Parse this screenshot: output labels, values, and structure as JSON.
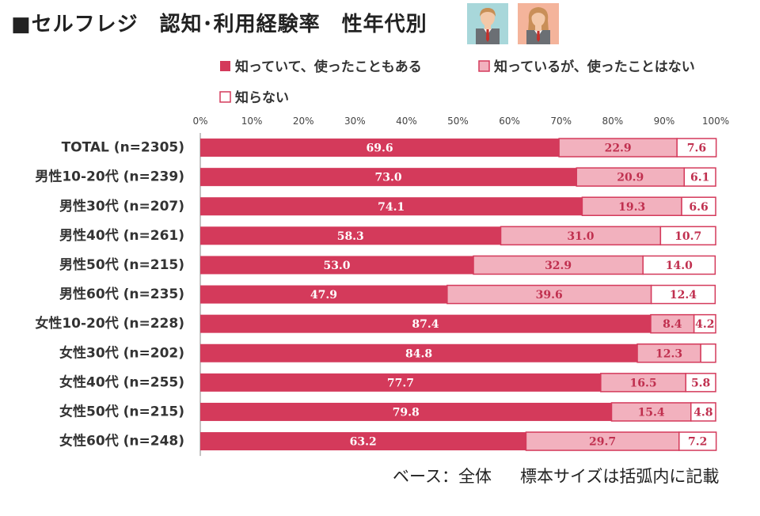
{
  "title": "■セルフレジ　認知･利用経験率　性年代別",
  "icons": [
    "man-avatar-icon",
    "woman-avatar-icon"
  ],
  "footnote": {
    "base": "ベース：全体",
    "sample": "標本サイズは括弧内に記載"
  },
  "colors": {
    "used": "#d43a5b",
    "known_not_used": "#f2b1be",
    "unknown": "#ffffff",
    "used_label": "#ffffff",
    "other_label": "#c0304f"
  },
  "chart_data": {
    "type": "bar",
    "orientation": "horizontal",
    "stacked": true,
    "categories": [
      "TOTAL (n=2305)",
      "男性10-20代 (n=239)",
      "男性30代 (n=207)",
      "男性40代 (n=261)",
      "男性50代 (n=215)",
      "男性60代 (n=235)",
      "女性10-20代 (n=228)",
      "女性30代 (n=202)",
      "女性40代 (n=255)",
      "女性50代 (n=215)",
      "女性60代 (n=248)"
    ],
    "series": [
      {
        "name": "知っていて、使ったこともある",
        "values": [
          69.6,
          73.0,
          74.1,
          58.3,
          53.0,
          47.9,
          87.4,
          84.8,
          77.7,
          79.8,
          63.2
        ],
        "labels": [
          "69.6",
          "73.0",
          "74.1",
          "58.3",
          "53.0",
          "47.9",
          "87.4",
          "84.8",
          "77.7",
          "79.8",
          "63.2"
        ]
      },
      {
        "name": "知っているが、使ったことはない",
        "values": [
          22.9,
          20.9,
          19.3,
          31.0,
          32.9,
          39.6,
          8.4,
          12.3,
          16.5,
          15.4,
          29.7
        ],
        "labels": [
          "22.9",
          "20.9",
          "19.3",
          "31.0",
          "32.9",
          "39.6",
          "8.4",
          "12.3",
          "16.5",
          "15.4",
          "29.7"
        ]
      },
      {
        "name": "知らない",
        "values": [
          7.6,
          6.1,
          6.6,
          10.7,
          14.0,
          12.4,
          4.2,
          2.9,
          5.8,
          4.8,
          7.2
        ],
        "labels": [
          "7.6",
          "6.1",
          "6.6",
          "10.7",
          "14.0",
          "12.4",
          "4.2",
          "",
          "5.8",
          "4.8",
          "7.2"
        ]
      }
    ],
    "x_ticks": [
      "0%",
      "10%",
      "20%",
      "30%",
      "40%",
      "50%",
      "60%",
      "70%",
      "80%",
      "90%",
      "100%"
    ],
    "xlim": [
      0,
      100
    ],
    "axis_position": "top",
    "legend_position": "top",
    "grid": false
  }
}
